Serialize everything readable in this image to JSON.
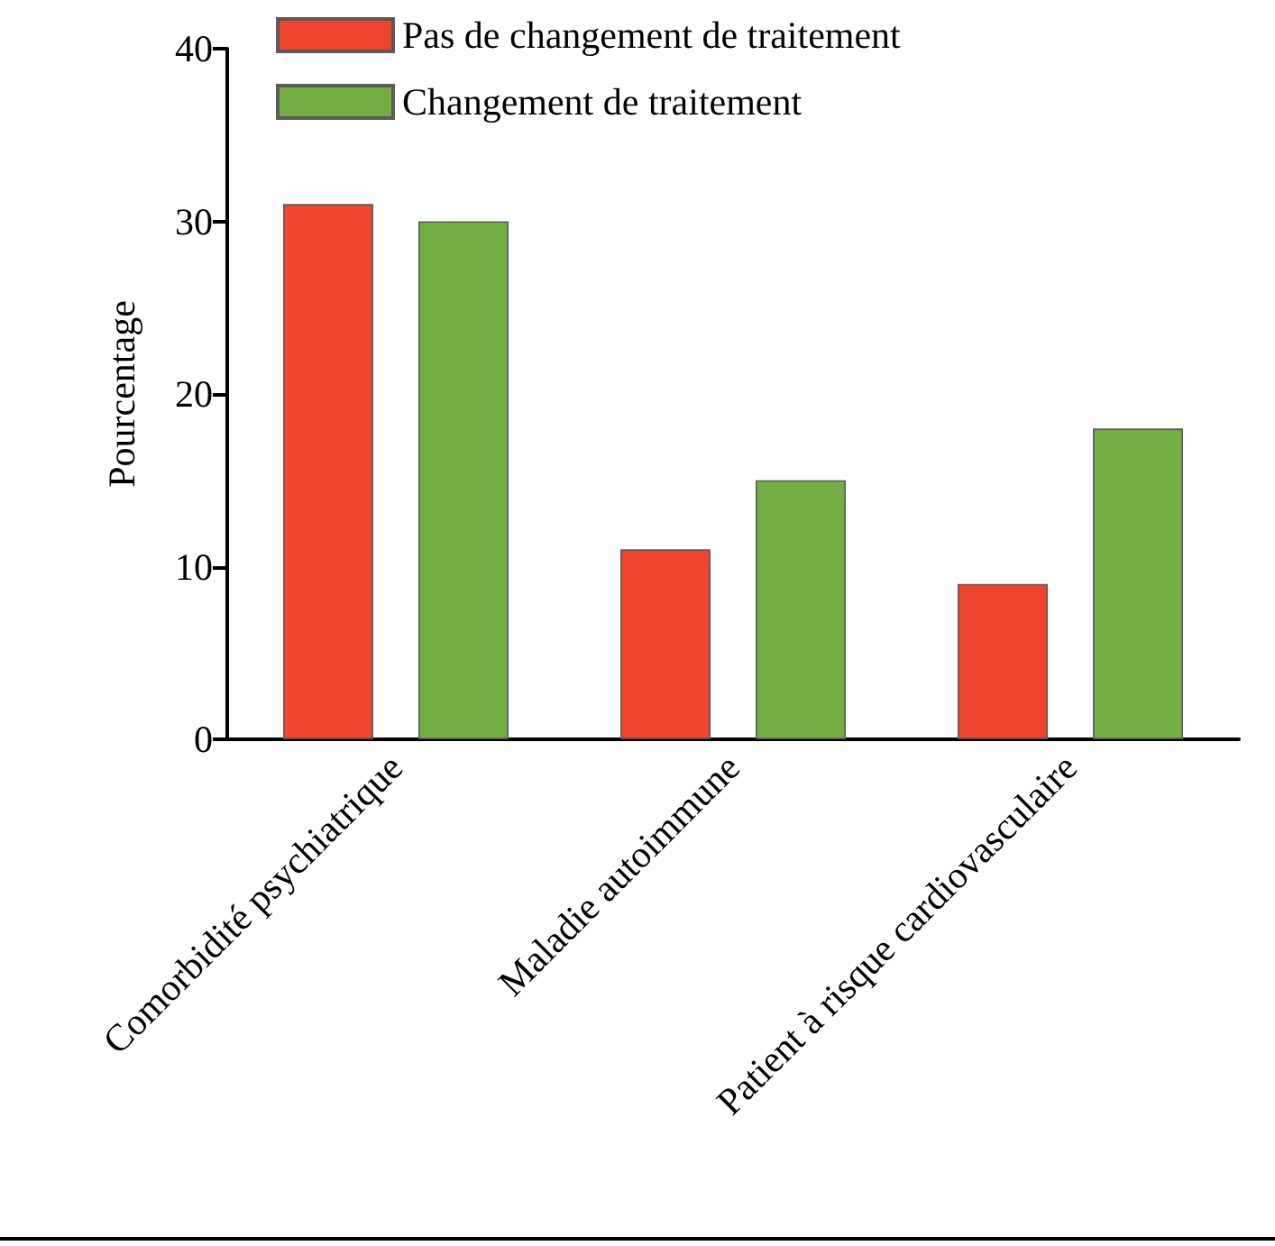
{
  "chart_data": {
    "type": "bar",
    "ylabel": "Pourcentage",
    "categories": [
      "Comorbidité psychiatrique",
      "Maladie autoimmune",
      "Patient à risque cardiovasculaire"
    ],
    "series": [
      {
        "name": "Pas de changement de traitement",
        "color": "#ee3a22",
        "values": [
          31,
          11,
          9
        ]
      },
      {
        "name": "Changement de traitement",
        "color": "#6aaa3a",
        "values": [
          30,
          15,
          18
        ]
      }
    ],
    "ylim": [
      0,
      40
    ],
    "yticks": [
      0,
      10,
      20,
      30,
      40
    ],
    "grid": false,
    "legend": "top left"
  }
}
